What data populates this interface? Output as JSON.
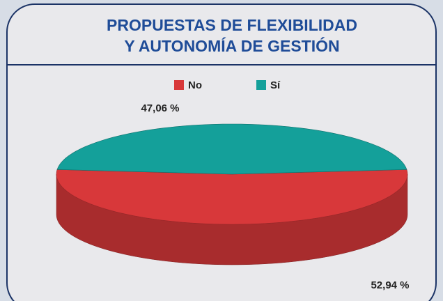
{
  "chart_data": {
    "type": "pie3d",
    "title": [
      "PROPUESTAS DE FLEXIBILIDAD",
      "Y AUTONOMÍA DE GESTIÓN"
    ],
    "categories": [
      "No",
      "Sí"
    ],
    "values": [
      52.94,
      47.06
    ],
    "value_labels": [
      "52,94 %",
      "47,06 %"
    ],
    "colors": [
      "#d8383a",
      "#14a09a"
    ],
    "legend": "top"
  }
}
